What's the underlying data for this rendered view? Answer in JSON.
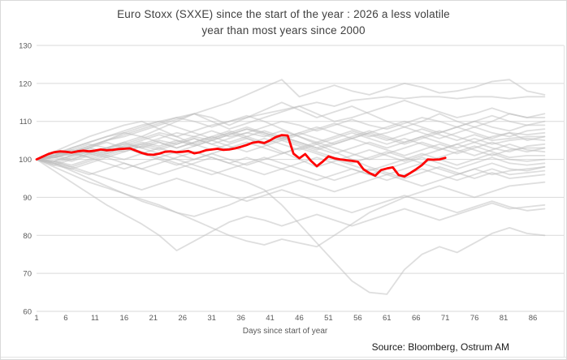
{
  "source": "Source: Bloomberg, Ostrum AM",
  "chart_data": {
    "type": "line",
    "title": "Euro Stoxx (SXXE) since the start of the year : 2026 a less volatile year than most years since 2000",
    "title_lines": [
      "Euro Stoxx (SXXE) since the start of the year : 2026 a less volatile",
      "year than most years since 2000"
    ],
    "xlabel": "Days since start of year",
    "ylabel": "",
    "xlim": [
      1,
      88
    ],
    "ylim": [
      60,
      130
    ],
    "x_ticks": [
      1,
      6,
      11,
      16,
      21,
      26,
      31,
      36,
      41,
      46,
      51,
      56,
      61,
      66,
      71,
      76,
      81,
      86
    ],
    "y_ticks": [
      60,
      70,
      80,
      90,
      100,
      110,
      120,
      130
    ],
    "grid": true,
    "legend": false,
    "colors": {
      "highlight": "#ff0000",
      "background_lines": "#bdbdbd",
      "background_opacity": 0.5,
      "gridline": "#d9d9d9",
      "tick_text": "#595959",
      "title_text": "#404040"
    },
    "highlight_series": {
      "name": "2026",
      "start_day": 1,
      "values": [
        100,
        100.7,
        101.4,
        101.9,
        102.1,
        102.0,
        101.8,
        102.1,
        102.3,
        102.1,
        102.3,
        102.6,
        102.4,
        102.5,
        102.7,
        102.8,
        102.9,
        102.3,
        101.7,
        101.3,
        101.2,
        101.5,
        102.0,
        102.1,
        101.9,
        102.0,
        102.2,
        101.6,
        101.9,
        102.4,
        102.6,
        102.8,
        102.5,
        102.6,
        102.9,
        103.3,
        103.8,
        104.4,
        104.6,
        104.3,
        105.0,
        105.9,
        106.4,
        106.3,
        101.5,
        100.3,
        101.4,
        99.6,
        98.2,
        99.4,
        100.8,
        100.3,
        100.0,
        99.8,
        99.6,
        99.4,
        97.4,
        96.4,
        95.7,
        97.2,
        97.6,
        97.9,
        95.9,
        95.5,
        96.4,
        97.4,
        98.5,
        100.0,
        99.9,
        100.0,
        100.4
      ]
    },
    "background_series": {
      "label": "one line per year, 2000-2025 (unlabeled in chart)",
      "days": [
        1,
        4,
        7,
        10,
        13,
        16,
        19,
        22,
        25,
        28,
        31,
        34,
        37,
        40,
        43,
        46,
        49,
        52,
        55,
        58,
        61,
        64,
        67,
        70,
        73,
        76,
        79,
        82,
        85,
        88
      ],
      "series": [
        [
          100,
          101,
          103,
          104.5,
          106,
          107,
          108.5,
          110,
          111,
          112,
          113.5,
          115,
          117,
          119,
          121,
          116.5,
          118,
          119.5,
          118,
          117,
          118.5,
          120,
          119,
          117.5,
          118,
          119,
          120.5,
          121,
          118,
          117
        ],
        [
          100,
          99.5,
          101,
          102,
          103,
          104,
          105.5,
          107,
          106,
          107.5,
          109,
          110,
          111,
          112,
          113,
          114,
          115,
          114,
          115.5,
          116,
          116.5,
          116,
          116.5,
          116.5,
          116,
          116.5,
          116.5,
          116,
          116.5,
          116.5
        ],
        [
          100,
          101.5,
          102,
          103.5,
          105,
          106,
          107.5,
          109,
          110.5,
          112,
          110,
          108,
          109.5,
          111,
          112.5,
          114,
          112,
          110,
          111,
          112.5,
          114,
          115.5,
          114,
          112.5,
          111,
          112,
          113.5,
          112,
          111,
          112
        ],
        [
          100,
          100.5,
          102,
          103,
          104.5,
          103,
          104,
          105.5,
          107,
          106,
          107.5,
          106,
          107,
          108.5,
          110,
          109,
          107.5,
          109,
          110.5,
          109,
          108,
          109.5,
          111,
          110,
          108.5,
          110,
          111.5,
          110,
          109,
          110
        ],
        [
          100,
          99,
          100.5,
          102,
          101,
          102.5,
          104,
          103,
          104.5,
          106,
          105,
          106.5,
          108,
          107,
          105.5,
          107,
          108.5,
          107,
          105.5,
          107,
          108.5,
          110,
          108.5,
          107,
          108.5,
          110,
          108.5,
          107.5,
          109,
          109
        ],
        [
          100,
          101,
          100,
          101.5,
          103,
          102,
          103.5,
          105,
          104,
          105.5,
          104,
          105.5,
          107,
          106,
          107.5,
          106,
          104.5,
          106,
          107.5,
          106,
          107,
          108.5,
          107,
          105.5,
          107,
          108.5,
          107,
          106,
          107.5,
          108
        ],
        [
          100,
          99.5,
          101,
          102.5,
          101.5,
          103,
          104.5,
          103.5,
          105,
          104,
          105.5,
          107,
          105.5,
          104,
          105.5,
          107,
          105.5,
          104,
          105.5,
          107,
          105.5,
          104,
          105.5,
          107,
          108.5,
          107,
          105.5,
          107,
          106.5,
          107
        ],
        [
          100,
          100.5,
          99.5,
          101,
          102.5,
          104,
          103,
          104.5,
          103,
          104.5,
          106,
          104.5,
          106,
          107.5,
          106,
          104.5,
          103,
          104.5,
          106,
          107.5,
          106,
          104.5,
          106,
          107.5,
          106,
          104.5,
          106,
          107,
          105,
          106
        ],
        [
          100,
          98.5,
          100,
          101.5,
          100.5,
          102,
          103.5,
          102.5,
          104,
          105.5,
          104,
          102.5,
          104,
          105.5,
          104,
          102.5,
          104,
          105.5,
          107,
          105.5,
          104,
          105.5,
          104,
          102.5,
          104,
          105.5,
          104,
          105,
          105.5,
          105
        ],
        [
          100,
          101,
          102.5,
          101.5,
          103,
          104.5,
          106,
          104.5,
          103,
          104.5,
          106,
          107.5,
          106,
          104.5,
          106,
          104.5,
          103,
          101.5,
          103,
          104.5,
          103,
          104.5,
          106,
          104.5,
          103,
          104.5,
          103,
          102,
          103.5,
          104
        ],
        [
          100,
          99,
          98,
          99.5,
          101,
          100,
          101.5,
          103,
          101.5,
          100,
          101.5,
          103,
          104.5,
          103,
          101.5,
          103,
          104.5,
          103,
          101.5,
          100,
          101.5,
          103,
          104.5,
          103,
          101.5,
          103,
          104.5,
          103,
          102,
          103
        ],
        [
          100,
          101.5,
          103,
          104.5,
          106,
          107.5,
          109,
          110,
          108.5,
          107,
          105.5,
          107,
          108.5,
          107,
          105.5,
          104,
          102.5,
          104,
          105.5,
          104,
          102.5,
          101,
          102.5,
          104,
          102.5,
          101,
          102.5,
          104,
          102.5,
          102
        ],
        [
          100,
          100.5,
          101.5,
          100.5,
          102,
          103.5,
          102,
          100.5,
          102,
          103.5,
          105,
          103.5,
          102,
          103.5,
          105,
          103.5,
          102,
          100.5,
          99,
          100.5,
          102,
          100.5,
          99,
          100.5,
          102,
          103.5,
          102,
          100.5,
          101,
          101
        ],
        [
          100,
          99.5,
          98.5,
          100,
          101.5,
          103,
          101.5,
          100,
          98.5,
          100,
          101.5,
          100,
          98.5,
          100,
          101.5,
          103,
          101.5,
          100,
          98.5,
          97,
          98.5,
          100,
          101.5,
          100,
          98.5,
          100,
          101.5,
          100,
          99.5,
          100
        ],
        [
          100,
          98.5,
          97.5,
          99,
          100.5,
          99,
          97.5,
          99,
          100.5,
          102,
          100.5,
          99,
          100.5,
          99,
          97.5,
          99,
          100.5,
          99,
          97.5,
          96,
          97.5,
          99,
          100.5,
          99,
          97.5,
          99,
          100.5,
          99,
          98.5,
          99
        ],
        [
          100,
          100.5,
          102,
          100.5,
          99,
          97.5,
          99,
          100.5,
          99,
          97.5,
          96,
          97.5,
          99,
          100.5,
          99,
          97.5,
          96,
          94.5,
          96,
          97.5,
          96,
          97.5,
          99,
          97.5,
          96,
          97.5,
          99,
          97.5,
          97,
          98
        ],
        [
          100,
          99,
          97.5,
          96,
          97.5,
          99,
          97.5,
          96,
          97.5,
          99,
          100.5,
          99,
          97.5,
          96,
          97.5,
          96,
          94.5,
          96,
          97.5,
          96,
          94.5,
          96,
          97.5,
          96,
          94.5,
          96,
          97.5,
          96,
          96.5,
          97
        ],
        [
          100,
          101,
          102,
          103.5,
          105,
          106.5,
          108,
          109.5,
          111,
          110,
          108.5,
          110,
          111.5,
          110,
          108,
          106,
          104,
          102,
          100,
          98,
          96.5,
          95,
          96.5,
          98,
          96.5,
          95,
          96.5,
          95,
          95.5,
          96
        ],
        [
          100,
          99,
          97,
          95,
          93,
          91,
          89.5,
          88,
          86,
          84,
          82,
          80,
          78.5,
          77.5,
          79,
          78,
          77,
          80,
          83,
          86,
          88,
          90,
          91.5,
          93,
          91.5,
          90,
          91.5,
          93,
          93.5,
          94
        ],
        [
          100,
          97,
          94,
          91,
          88,
          85.5,
          83,
          80,
          76,
          78.5,
          81,
          83.5,
          85,
          84,
          82.5,
          84,
          85.5,
          84,
          82.5,
          84,
          85.5,
          87,
          85.5,
          84,
          85.5,
          87,
          88.5,
          87,
          87.5,
          88
        ],
        [
          100,
          99.5,
          98,
          96.5,
          95,
          93.5,
          92,
          93.5,
          95,
          93.5,
          92,
          90.5,
          89,
          90.5,
          92,
          90.5,
          89,
          87.5,
          86,
          87.5,
          89,
          90.5,
          89,
          87.5,
          86,
          87.5,
          89,
          87.5,
          86.5,
          87
        ],
        [
          100,
          101,
          102.5,
          104,
          103,
          104.5,
          103,
          101.5,
          100,
          98.5,
          97,
          95.5,
          94,
          92,
          88,
          83,
          78,
          73,
          68,
          65,
          64.5,
          71,
          75,
          77,
          75.5,
          78,
          80.5,
          82,
          80.5,
          80
        ],
        [
          100,
          102,
          104,
          106,
          107.5,
          109,
          110,
          108,
          106,
          104,
          102.5,
          104,
          105.5,
          104,
          102,
          100,
          98,
          99.5,
          101,
          102.5,
          101,
          99.5,
          101,
          102.5,
          104,
          102.5,
          101,
          102.5,
          103,
          103
        ],
        [
          100,
          98,
          96,
          94,
          92.5,
          91,
          89,
          87.5,
          86,
          85,
          86.5,
          88,
          90,
          91.5,
          93,
          94.5,
          93,
          91.5,
          93,
          94.5,
          96,
          94.5,
          93,
          94.5,
          96,
          97.5,
          96,
          97,
          97.5,
          98
        ],
        [
          100,
          102,
          101,
          103,
          105,
          107,
          106,
          108,
          110,
          112,
          111,
          109,
          111,
          113,
          115,
          113,
          111,
          112.5,
          114,
          112,
          110,
          108.5,
          110,
          112,
          110,
          108.5,
          110,
          112,
          111,
          111
        ],
        [
          100,
          100.5,
          101.5,
          103,
          102,
          103.5,
          105,
          106.5,
          105,
          103.5,
          105,
          106.5,
          108,
          106.5,
          105,
          106.5,
          108,
          109.5,
          108,
          106.5,
          105,
          106.5,
          108,
          106.5,
          105,
          106.5,
          105,
          105.5,
          106,
          106
        ]
      ]
    }
  }
}
